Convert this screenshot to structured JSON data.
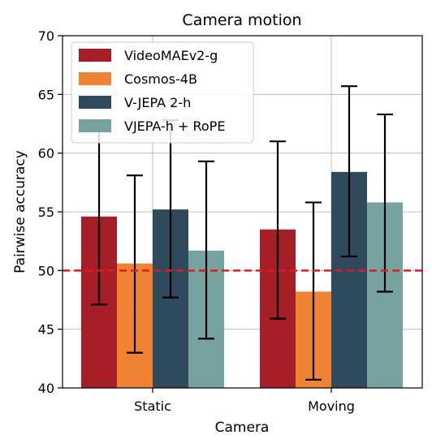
{
  "chart_data": {
    "type": "bar",
    "title": "Camera motion",
    "xlabel": "Camera",
    "ylabel": "Pairwise accuracy",
    "ylim": [
      40,
      70
    ],
    "yticks": [
      40,
      45,
      50,
      55,
      60,
      65,
      70
    ],
    "grid": true,
    "legend_position": "top-left",
    "reference_line": {
      "y": 50,
      "color": "#e31a1c",
      "style": "dashed"
    },
    "categories": [
      "Static",
      "Moving"
    ],
    "series": [
      {
        "name": "VideoMAEv2-g",
        "color": "#a51d26",
        "values": [
          54.6,
          53.5
        ],
        "error_low": [
          47.1,
          45.9
        ],
        "error_high": [
          62.2,
          61.0
        ]
      },
      {
        "name": "Cosmos-4B",
        "color": "#ef8233",
        "values": [
          50.6,
          48.2
        ],
        "error_low": [
          43.0,
          40.7
        ],
        "error_high": [
          58.1,
          55.8
        ]
      },
      {
        "name": "V-JEPA 2-h",
        "color": "#2e4a5c",
        "values": [
          55.2,
          58.4
        ],
        "error_low": [
          47.7,
          51.2
        ],
        "error_high": [
          62.8,
          65.7
        ]
      },
      {
        "name": "VJEPA-h + RoPE",
        "color": "#76a29f",
        "values": [
          51.7,
          55.8
        ],
        "error_low": [
          44.2,
          48.2
        ],
        "error_high": [
          59.3,
          63.3
        ]
      }
    ]
  }
}
